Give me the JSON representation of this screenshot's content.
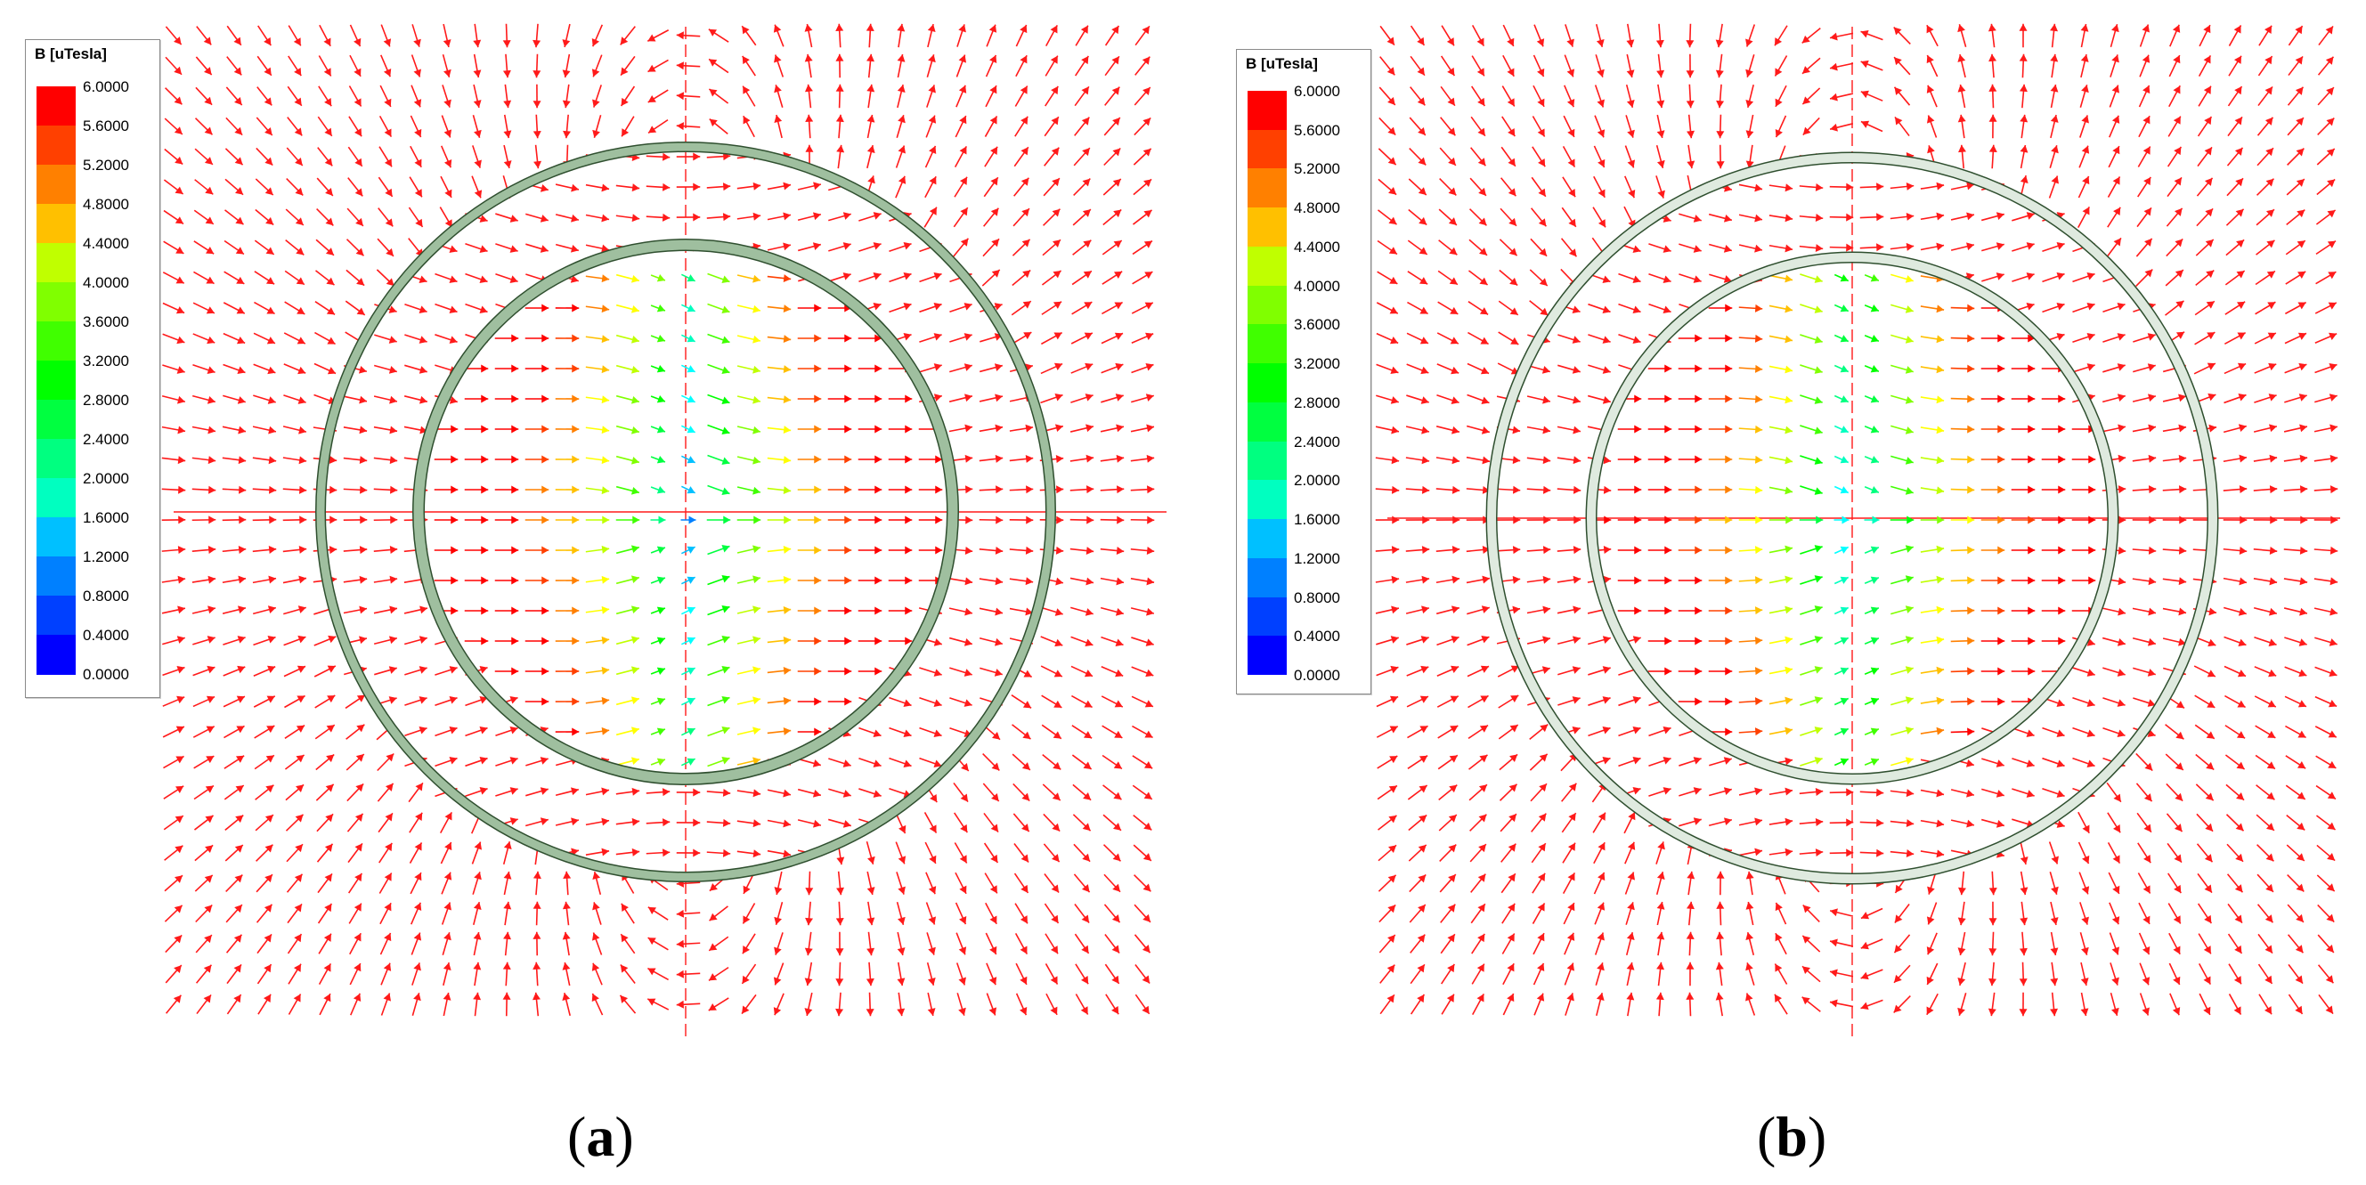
{
  "panels": [
    {
      "id": "a",
      "label_open": "(",
      "label_letter": "a",
      "label_close": ")",
      "legend": {
        "title": "B [uTesla]",
        "ticks": [
          "6.0000",
          "5.6000",
          "5.2000",
          "4.8000",
          "4.4000",
          "4.0000",
          "3.6000",
          "3.2000",
          "2.8000",
          "2.4000",
          "2.0000",
          "1.6000",
          "1.2000",
          "0.8000",
          "0.4000",
          "0.0000"
        ]
      }
    },
    {
      "id": "b",
      "label_open": "(",
      "label_letter": "b",
      "label_close": ")",
      "legend": {
        "title": "B [uTesla]",
        "ticks": [
          "6.0000",
          "5.6000",
          "5.2000",
          "4.8000",
          "4.4000",
          "4.0000",
          "3.6000",
          "3.2000",
          "2.8000",
          "2.4000",
          "2.0000",
          "1.6000",
          "1.2000",
          "0.8000",
          "0.4000",
          "0.0000"
        ]
      }
    }
  ],
  "colormap": [
    "#0000ff",
    "#0040ff",
    "#0080ff",
    "#00c0ff",
    "#00ffff",
    "#00ffc0",
    "#00ff80",
    "#00ff40",
    "#00ff00",
    "#40ff00",
    "#80ff00",
    "#c0ff00",
    "#ffff00",
    "#ffc000",
    "#ff8000",
    "#ff4000",
    "#ff0000"
  ],
  "colors": {
    "vector": "#ff1a1a",
    "ring_fill": "#9fbf9f",
    "ring_stroke": "#2f4f2f",
    "ring_fill_b": "#dfeadf"
  }
}
